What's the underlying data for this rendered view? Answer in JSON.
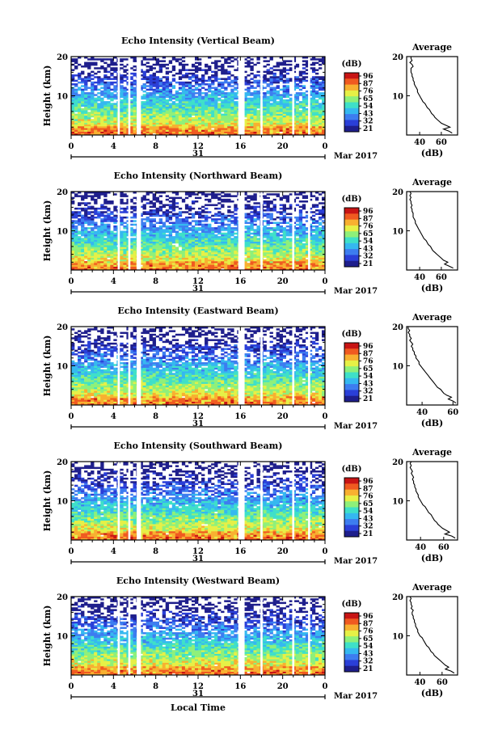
{
  "chart_data": [
    {
      "type": "heatmap",
      "title": "Echo Intensity (Vertical Beam)",
      "ylabel": "Height (km)",
      "xlabel": "",
      "ylim": [
        0,
        20
      ],
      "yticks": [
        "20",
        "10"
      ],
      "xticks": [
        "0",
        "4",
        "8",
        "12",
        "16",
        "20",
        "0"
      ],
      "date_label": "31",
      "month_label": "Mar 2017",
      "colorbar": {
        "unit": "(dB)",
        "ticks": [
          "96",
          "87",
          "76",
          "65",
          "54",
          "43",
          "32",
          "21"
        ]
      },
      "gaps_hours": [
        [
          4.4,
          4.6
        ],
        [
          5.4,
          5.6
        ],
        [
          6.2,
          6.6
        ],
        [
          15.8,
          16.4
        ],
        [
          17.9,
          18.1
        ],
        [
          20.9,
          21.1
        ],
        [
          22.4,
          22.6
        ]
      ],
      "average": {
        "title": "Average",
        "xlabel": "(dB)",
        "xticks": [
          "40",
          "60"
        ],
        "xlim": [
          28,
          75
        ],
        "yticks": [
          "20",
          "10"
        ],
        "values": [
          70,
          67,
          62,
          68,
          64,
          60,
          58,
          56,
          54,
          53,
          51,
          50,
          49,
          47,
          46,
          45,
          43,
          42,
          41,
          40,
          39,
          38,
          38,
          37,
          36,
          35,
          35,
          34,
          34,
          33,
          33,
          32,
          32,
          32,
          34,
          33,
          31,
          33,
          32,
          32
        ]
      }
    },
    {
      "type": "heatmap",
      "title": "Echo Intensity (Northward Beam)",
      "ylabel": "Height (km)",
      "xlabel": "",
      "ylim": [
        0,
        20
      ],
      "yticks": [
        "20",
        "10"
      ],
      "xticks": [
        "0",
        "4",
        "8",
        "12",
        "16",
        "20",
        "0"
      ],
      "date_label": "31",
      "month_label": "Mar 2017",
      "colorbar": {
        "unit": "(dB)",
        "ticks": [
          "96",
          "87",
          "76",
          "65",
          "54",
          "43",
          "32",
          "21"
        ]
      },
      "gaps_hours": [
        [
          4.4,
          4.6
        ],
        [
          5.4,
          5.6
        ],
        [
          6.2,
          6.6
        ],
        [
          15.8,
          16.4
        ],
        [
          17.9,
          18.1
        ],
        [
          20.9,
          21.1
        ],
        [
          22.4,
          22.6
        ]
      ],
      "average": {
        "title": "Average",
        "xlabel": "(dB)",
        "xticks": [
          "40",
          "60"
        ],
        "xlim": [
          28,
          75
        ],
        "yticks": [
          "20",
          "10"
        ],
        "values": [
          71,
          67,
          63,
          66,
          62,
          60,
          58,
          56,
          54,
          52,
          51,
          50,
          48,
          47,
          46,
          44,
          43,
          42,
          41,
          40,
          39,
          38,
          37,
          36,
          36,
          35,
          34,
          34,
          34,
          33,
          33,
          32,
          33,
          32,
          32,
          31,
          32,
          31,
          32,
          31
        ]
      }
    },
    {
      "type": "heatmap",
      "title": "Echo Intensity (Eastward Beam)",
      "ylabel": "Height (km)",
      "xlabel": "",
      "ylim": [
        0,
        20
      ],
      "yticks": [
        "20",
        "10"
      ],
      "xticks": [
        "0",
        "4",
        "8",
        "12",
        "16",
        "20",
        "0"
      ],
      "date_label": "31",
      "month_label": "Mar 2017",
      "colorbar": {
        "unit": "(dB)",
        "ticks": [
          "96",
          "87",
          "76",
          "65",
          "54",
          "43",
          "32",
          "21"
        ]
      },
      "gaps_hours": [
        [
          4.4,
          4.6
        ],
        [
          5.4,
          5.6
        ],
        [
          6.2,
          6.6
        ],
        [
          15.8,
          16.4
        ],
        [
          17.9,
          18.1
        ],
        [
          20.9,
          21.1
        ],
        [
          22.4,
          22.6
        ]
      ],
      "average": {
        "title": "Average",
        "xlabel": "(dB)",
        "xticks": [
          "40",
          "60"
        ],
        "xlim": [
          30,
          63
        ],
        "yticks": [
          "20",
          "10"
        ],
        "values": [
          62,
          60,
          57,
          59,
          56,
          54,
          53,
          52,
          50,
          49,
          48,
          47,
          46,
          45,
          44,
          43,
          42,
          41,
          40,
          39,
          38,
          38,
          37,
          36,
          36,
          35,
          35,
          34,
          34,
          33,
          34,
          33,
          32,
          33,
          32,
          32,
          31,
          32,
          31,
          31
        ]
      }
    },
    {
      "type": "heatmap",
      "title": "Echo Intensity (Southward Beam)",
      "ylabel": "Height (km)",
      "xlabel": "",
      "ylim": [
        0,
        20
      ],
      "yticks": [
        "20",
        "10"
      ],
      "xticks": [
        "0",
        "4",
        "8",
        "12",
        "16",
        "20",
        "0"
      ],
      "date_label": "31",
      "month_label": "Mar 2017",
      "colorbar": {
        "unit": "(dB)",
        "ticks": [
          "96",
          "87",
          "76",
          "65",
          "54",
          "43",
          "32",
          "21"
        ]
      },
      "gaps_hours": [
        [
          4.4,
          4.6
        ],
        [
          5.4,
          5.6
        ],
        [
          6.2,
          6.6
        ],
        [
          15.8,
          16.4
        ],
        [
          17.9,
          18.1
        ],
        [
          20.9,
          21.1
        ],
        [
          22.4,
          22.6
        ]
      ],
      "average": {
        "title": "Average",
        "xlabel": "(dB)",
        "xticks": [
          "40",
          "60"
        ],
        "xlim": [
          28,
          72
        ],
        "yticks": [
          "20",
          "10"
        ],
        "values": [
          70,
          67,
          61,
          65,
          62,
          59,
          57,
          55,
          54,
          52,
          51,
          50,
          49,
          47,
          46,
          45,
          44,
          42,
          41,
          40,
          39,
          38,
          38,
          37,
          36,
          36,
          35,
          35,
          34,
          34,
          33,
          34,
          33,
          32,
          33,
          32,
          31,
          32,
          31,
          32
        ]
      }
    },
    {
      "type": "heatmap",
      "title": "Echo Intensity (Westward Beam)",
      "ylabel": "Height (km)",
      "xlabel": "Local Time",
      "ylim": [
        0,
        20
      ],
      "yticks": [
        "20",
        "10"
      ],
      "xticks": [
        "0",
        "4",
        "8",
        "12",
        "16",
        "20",
        "0"
      ],
      "date_label": "31",
      "month_label": "Mar 2017",
      "colorbar": {
        "unit": "(dB)",
        "ticks": [
          "96",
          "87",
          "76",
          "65",
          "54",
          "43",
          "32",
          "21"
        ]
      },
      "gaps_hours": [
        [
          4.4,
          4.6
        ],
        [
          5.4,
          5.6
        ],
        [
          6.2,
          6.6
        ],
        [
          15.8,
          16.4
        ],
        [
          17.9,
          18.1
        ],
        [
          20.9,
          21.1
        ],
        [
          22.4,
          22.6
        ]
      ],
      "average": {
        "title": "Average",
        "xlabel": "(dB)",
        "xticks": [
          "40",
          "60"
        ],
        "xlim": [
          28,
          74
        ],
        "yticks": [
          "20",
          "10"
        ],
        "values": [
          71,
          68,
          63,
          66,
          63,
          61,
          59,
          57,
          55,
          53,
          52,
          50,
          49,
          48,
          46,
          45,
          44,
          43,
          42,
          40,
          39,
          38,
          38,
          37,
          36,
          36,
          35,
          35,
          34,
          34,
          33,
          33,
          34,
          32,
          33,
          32,
          32,
          31,
          32,
          31
        ]
      }
    }
  ],
  "colors": {
    "axis": "#000000",
    "colormap": [
      "#1e1e8c",
      "#2a3fd8",
      "#3d7df0",
      "#35b8f0",
      "#3fe0c8",
      "#8ef07a",
      "#e6f046",
      "#f8b030",
      "#f05a20",
      "#c81414"
    ]
  }
}
